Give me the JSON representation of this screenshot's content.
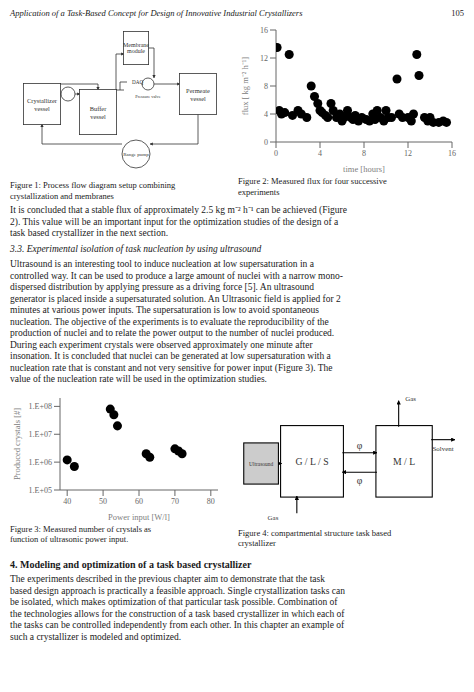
{
  "chart_data": [
    {
      "type": "header",
      "annotations": [
        "Application of a Task-Based Concept for Design of Innovative Industrial Crystallizers",
        "105"
      ]
    },
    {
      "type": "flowchart",
      "title": "Figure 1: Process flow diagram setup combining\ncrystallization and membranes",
      "annotations": [
        "Crystallizer\nvessel",
        "Buffer\nvessel",
        "Membrane\nmodule",
        "Permeate\nvessel",
        "Range pump",
        "DAQ",
        "Pressure valve"
      ]
    },
    {
      "type": "scatter",
      "title": "Figure 2: Measured flux for four successive\nexperiments",
      "x_label": "time [hours]",
      "y_label": "flux [ kg m⁻² h⁻¹]",
      "x": [
        0.1,
        0.3,
        0.5,
        0.8,
        1.2,
        1.5,
        2.0,
        2.3,
        2.8,
        3.2,
        3.5,
        3.8,
        4.0,
        4.2,
        4.5,
        4.7,
        5.0,
        5.2,
        5.5,
        5.8,
        6.0,
        6.2,
        6.5,
        6.8,
        7.0,
        7.2,
        7.5,
        7.8,
        8.2,
        8.5,
        8.8,
        9.0,
        9.2,
        9.5,
        9.8,
        10.0,
        10.2,
        10.5,
        11.0,
        11.2,
        11.5,
        12.0,
        12.3,
        12.5,
        12.8,
        13.0,
        13.5,
        13.8,
        14.0,
        14.3,
        14.8,
        15.2,
        15.5
      ],
      "values": [
        13.5,
        4.5,
        4.0,
        4.2,
        12.5,
        3.8,
        4.5,
        4.0,
        3.5,
        8.0,
        6.5,
        5.5,
        4.5,
        4.2,
        3.8,
        3.5,
        5.5,
        4.5,
        3.5,
        4.0,
        3.0,
        3.5,
        4.5,
        3.5,
        3.2,
        3.8,
        3.0,
        3.5,
        3.2,
        3.0,
        4.0,
        3.2,
        4.5,
        3.5,
        3.0,
        4.5,
        3.5,
        3.5,
        9.0,
        4.0,
        3.5,
        3.5,
        3.0,
        4.0,
        12.5,
        9.5,
        3.5,
        3.0,
        3.5,
        2.8,
        2.8,
        3.0,
        2.8
      ],
      "xlim": [
        0,
        16
      ],
      "xticks": [
        0,
        4,
        8,
        12,
        16
      ],
      "ylim": [
        0,
        16
      ],
      "yticks": [
        0,
        4,
        8,
        12,
        16
      ]
    },
    {
      "type": "text",
      "annotations": [
        "It is concluded that a stable flux of approximately 2.5 kg m⁻² h⁻¹ can be achieved (Figure",
        "2). This value will be an important input for the optimization studies of the design of a",
        "task based crystallizer in the next section."
      ]
    },
    {
      "type": "subheading",
      "annotations": [
        "3.3. Experimental isolation of task nucleation by using ultrasound"
      ]
    },
    {
      "type": "text",
      "annotations": [
        "Ultrasound is an interesting tool to induce nucleation at low supersaturation in a",
        "controlled way. It can be used to produce a large amount of nuclei with a narrow mono-",
        "dispersed distribution by applying pressure as a driving force [5]. An ultrasound",
        "generator is placed inside a supersaturated solution. An Ultrasonic field is applied for 2",
        "minutes at various power inputs. The supersaturation is low to avoid spontaneous",
        "nucleation. The objective of the experiments is to evaluate the reproducibility of the",
        "production of nuclei and to relate the power output to the number of nuclei produced.",
        "During each experiment crystals were observed approximately one minute after",
        "insonation. It is concluded that nuclei can be generated at low supersaturation with a",
        "nucleation rate that is constant and not very sensitive for power input (Figure 3). The",
        "value of the nucleation rate will be used in the optimization studies."
      ]
    },
    {
      "type": "scatter",
      "title": "Figure 3: Measured number of crystals as\nfunction of ultrasonic power input.",
      "x_label": "Power input [W/l]",
      "y_label": "Produced crystals [#]",
      "x": [
        40,
        42,
        52,
        53,
        54,
        62,
        63,
        70,
        71,
        72
      ],
      "values": [
        1200000,
        700000,
        80000000,
        50000000,
        20000000,
        2000000,
        1500000,
        3000000,
        2500000,
        2000000
      ],
      "log": "y",
      "xlim": [
        38,
        82
      ],
      "xticks": [
        40,
        50,
        60,
        70,
        80
      ],
      "ylim": [
        100000,
        200000000
      ],
      "yticks": [
        {
          "value": 100000,
          "label": "1.E+05"
        },
        {
          "value": 1000000,
          "label": "1.E+06"
        },
        {
          "value": 10000000,
          "label": "1.E+07"
        },
        {
          "value": 100000000,
          "label": "1.E+08"
        }
      ]
    },
    {
      "type": "blockdiagram",
      "title": "Figure 4: compartmental structure task based\ncrystallizer",
      "annotations": [
        "G / L / S",
        "M / L",
        "Ultrasound",
        "φ",
        "φ",
        "Gas",
        "Gas",
        "Solvent"
      ],
      "color": "#cccccc"
    },
    {
      "type": "heading",
      "annotations": [
        "4. Modeling and optimization of a task based crystallizer"
      ]
    },
    {
      "type": "text",
      "annotations": [
        "The experiments described in the previous chapter aim to demonstrate that the task",
        "based design approach is practically a feasible approach. Single crystallization tasks can",
        "be isolated, which makes optimization of that particular task possible. Combination of",
        "the technologies allows for the construction of a task based crystallizer in which each of",
        "the tasks can be controlled independently from each other. In this chapter an example of",
        "such a crystallizer is modeled and optimized."
      ]
    }
  ]
}
